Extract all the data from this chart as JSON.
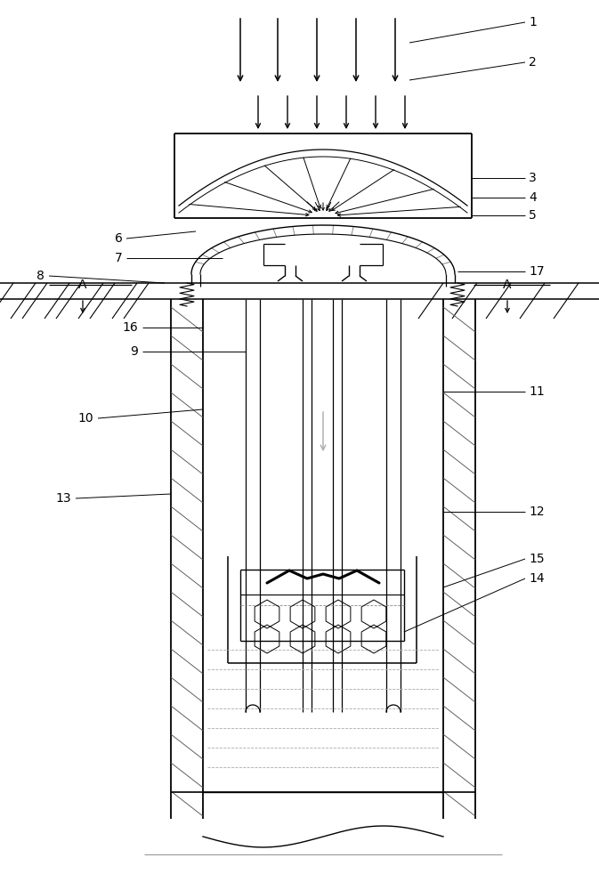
{
  "bg_color": "#ffffff",
  "lc": "#000000",
  "gray": "#aaaaaa",
  "fig_w": 6.73,
  "fig_h": 10.0,
  "dpi": 100
}
